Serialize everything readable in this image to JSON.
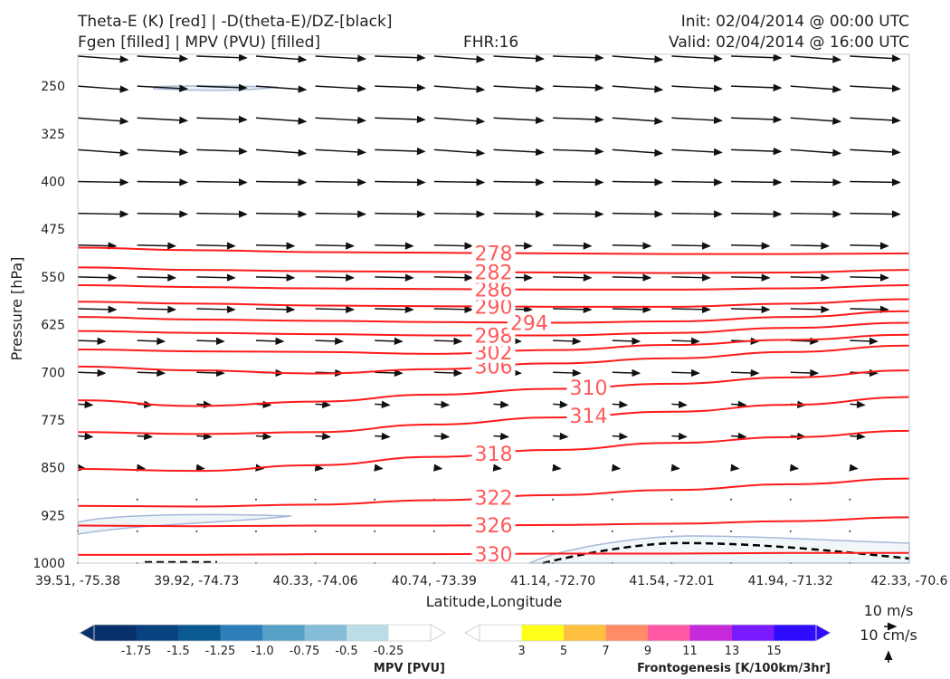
{
  "header": {
    "title_left_1": "Theta-E (K) [red] | -D(theta-E)/DZ-[black]",
    "title_left_2": "Fgen [filled] | MPV (PVU) [filled]",
    "fhr": "FHR:16",
    "init": "Init: 02/04/2014 @ 00:00 UTC",
    "valid": "Valid: 02/04/2014 @ 16:00 UTC"
  },
  "chart_data": {
    "type": "cross-section",
    "xlabel": "Latitude,Longitude",
    "ylabel": "Pressure [hPa]",
    "x_ticks": [
      "39.51, -75.38",
      "39.92, -74.73",
      "40.33, -74.06",
      "40.74, -73.39",
      "41.14, -72.70",
      "41.54, -72.01",
      "41.94, -71.32",
      "42.33, -70.6"
    ],
    "y_ticks": [
      250,
      325,
      400,
      475,
      550,
      625,
      700,
      775,
      850,
      925,
      1000
    ],
    "ylim": [
      1000,
      200
    ],
    "theta_e_contours": [
      {
        "label": "330",
        "y": [
          -13,
          -13,
          -14,
          -14,
          -15,
          -15,
          -16,
          -16
        ]
      },
      {
        "label": "326",
        "y": [
          -59,
          -58,
          -59,
          -59,
          -60,
          -62,
          -66,
          -72
        ]
      },
      {
        "label": "322",
        "y": [
          -90,
          -89,
          -92,
          -99,
          -107,
          -115,
          -124,
          -133
        ]
      },
      {
        "label": "318",
        "y": [
          -148,
          -145,
          -154,
          -167,
          -178,
          -189,
          -198,
          -208
        ]
      },
      {
        "label": "314",
        "y": [
          -206,
          -203,
          -206,
          -218,
          -229,
          -238,
          -249,
          -261
        ]
      },
      {
        "label": "310",
        "y": [
          -256,
          -247,
          -254,
          -265,
          -274,
          -282,
          -292,
          -303
        ]
      },
      {
        "label": "306",
        "y": [
          -309,
          -303,
          -298,
          -305,
          -314,
          -322,
          -332,
          -342
        ]
      },
      {
        "label": "302",
        "y": [
          -336,
          -333,
          -332,
          -329,
          -335,
          -343,
          -351,
          -359
        ]
      },
      {
        "label": "298",
        "y": [
          -365,
          -362,
          -360,
          -358,
          -358,
          -362,
          -370,
          -378
        ]
      },
      {
        "label": "294",
        "y": [
          -387,
          -383,
          -381,
          -379,
          -378,
          -380,
          -387,
          -396
        ]
      },
      {
        "label": "290",
        "y": [
          -411,
          -408,
          -405,
          -404,
          -403,
          -403,
          -408,
          -415
        ]
      },
      {
        "label": "286",
        "y": [
          -437,
          -434,
          -432,
          -431,
          -430,
          -430,
          -432,
          -437
        ]
      },
      {
        "label": "282",
        "y": [
          -465,
          -461,
          -459,
          -458,
          -457,
          -456,
          -457,
          -461
        ]
      },
      {
        "label": "278",
        "y": [
          -496,
          -492,
          -489,
          -488,
          -487,
          -486,
          -486,
          -487
        ]
      }
    ],
    "colorbar_mpv": {
      "title": "MPV [PVU]",
      "ticks": [
        "-1.75",
        "-1.5",
        "-1.25",
        "-1.0",
        "-0.75",
        "-0.5",
        "-0.25"
      ],
      "colors": [
        "#08306b",
        "#08437f",
        "#0a5a91",
        "#2c7fb8",
        "#56a0c8",
        "#85bcd8",
        "#bcdce8",
        "#ffffff"
      ]
    },
    "colorbar_fgen": {
      "title": "Frontogenesis [K/100km/3hr]",
      "ticks": [
        "3",
        "5",
        "7",
        "9",
        "11",
        "13",
        "15"
      ],
      "colors": [
        "#ffffff",
        "#ffff1a",
        "#ffbf40",
        "#ff8c66",
        "#ff59a6",
        "#c629d9",
        "#7a1aff",
        "#2e0dff"
      ]
    },
    "wind_key": {
      "u_label": "10 m/s",
      "w_label": "10 cm/s"
    }
  },
  "colors": {
    "theta_e": "#ff1a1a",
    "label": "#ff5a5a",
    "vector": "#111111",
    "mpv_outline": "#a8b8d8"
  }
}
